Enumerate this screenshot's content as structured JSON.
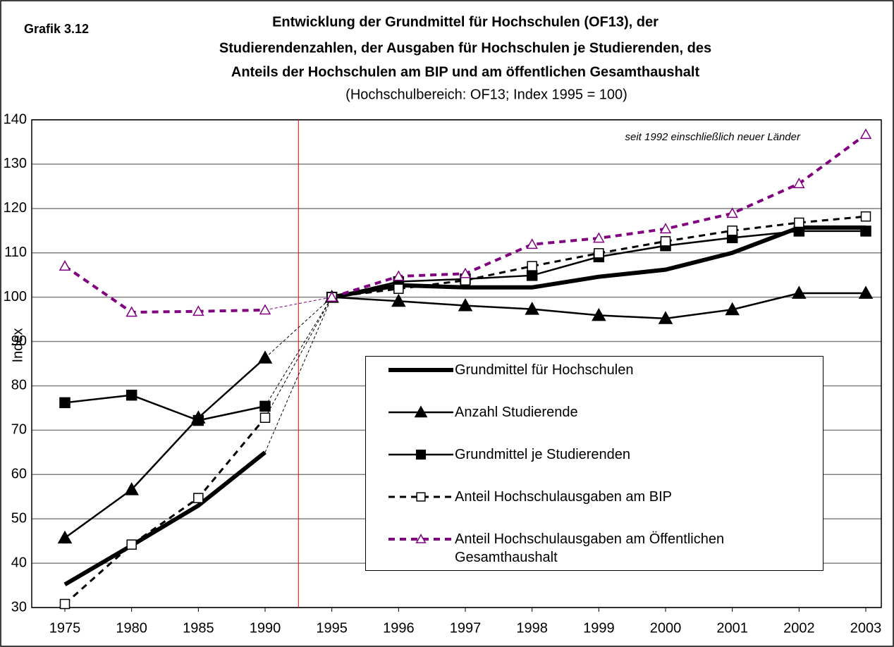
{
  "chart_data": {
    "type": "line",
    "label": "Grafik 3.12",
    "title": [
      "Entwicklung der Grundmittel für Hochschulen (OF13), der",
      "Studierendenzahlen, der Ausgaben für Hochschulen je Studierenden, des",
      "Anteils der Hochschulen am BIP und am öffentlichen Gesamthaushalt"
    ],
    "subtitle": "(Hochschulbereich: OF13; Index 1995 = 100)",
    "y_label": "Index",
    "annotation": "seit 1992 einschließlich neuer Länder",
    "categories": [
      "1975",
      "1980",
      "1985",
      "1990",
      "1995",
      "1996",
      "1997",
      "1998",
      "1999",
      "2000",
      "2001",
      "2002",
      "2003"
    ],
    "series": [
      {
        "name": "Grundmittel für Hochschulen",
        "color": "#000000",
        "values": [
          35.2,
          44,
          53,
          65,
          100,
          102.7,
          102.2,
          102.2,
          104.6,
          106.2,
          110,
          115.7,
          115.7
        ]
      },
      {
        "name": "Anzahl Studierende",
        "color": "#000000",
        "values": [
          45.7,
          56.6,
          72.8,
          86.3,
          100,
          99.1,
          98.1,
          97.3,
          95.9,
          95.2,
          97.2,
          100.9,
          100.9
        ]
      },
      {
        "name": "Grundmittel je Studierenden",
        "color": "#000000",
        "values": [
          76.2,
          77.9,
          72.2,
          75.4,
          100,
          103.5,
          104.1,
          104.9,
          109.1,
          111.6,
          113.4,
          114.9,
          114.9
        ]
      },
      {
        "name": "Anteil Hochschulausgaben am BIP",
        "color": "#000000",
        "values": [
          30.8,
          44.2,
          54.7,
          72.8,
          100,
          101.9,
          103.8,
          107,
          109.9,
          112.6,
          115,
          116.8,
          118.2
        ]
      },
      {
        "name": "Anteil Hochschulausgaben am Öffentlichen Gesamthaushalt",
        "color": "#800080",
        "values": [
          107,
          96.6,
          96.8,
          97.1,
          100,
          104.7,
          105.3,
          111.9,
          113.3,
          115.4,
          118.9,
          125.6,
          136.7
        ]
      }
    ],
    "ylim": [
      30,
      140
    ],
    "yticks": [
      30,
      40,
      50,
      60,
      70,
      80,
      90,
      100,
      110,
      120,
      130,
      140
    ],
    "grid": true
  }
}
